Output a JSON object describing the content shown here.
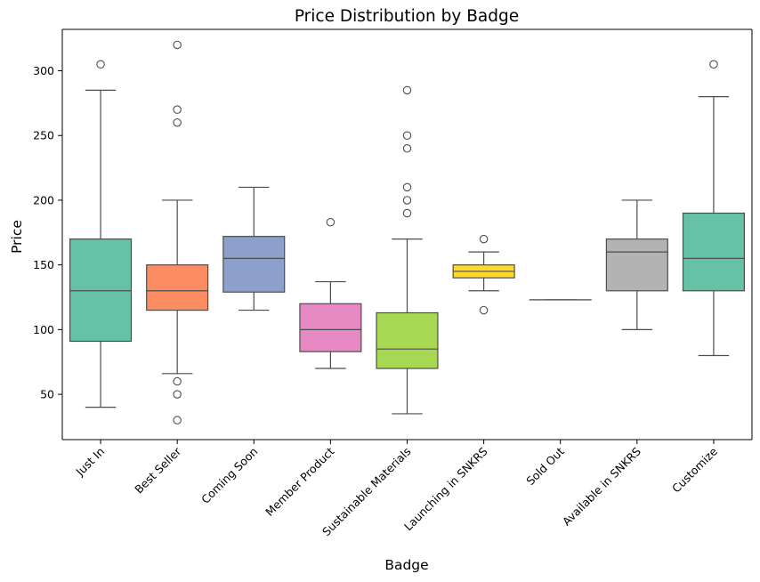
{
  "chart_data": {
    "type": "box",
    "title": "Price Distribution by Badge",
    "xlabel": "Badge",
    "ylabel": "Price",
    "ylim": [
      15,
      332
    ],
    "yticks": [
      50,
      100,
      150,
      200,
      250,
      300
    ],
    "grid": false,
    "legend": "none",
    "series": [
      {
        "category": "Just In",
        "color": "#66c2a5",
        "whislo": 40,
        "q1": 91,
        "med": 130,
        "q3": 170,
        "whishi": 285,
        "fliers": [
          305
        ]
      },
      {
        "category": "Best Seller",
        "color": "#fc8d62",
        "whislo": 66,
        "q1": 115,
        "med": 130,
        "q3": 150,
        "whishi": 200,
        "fliers": [
          320,
          270,
          260,
          60,
          50,
          30
        ]
      },
      {
        "category": "Coming Soon",
        "color": "#8da0cb",
        "whislo": 115,
        "q1": 129,
        "med": 155,
        "q3": 172,
        "whishi": 210,
        "fliers": []
      },
      {
        "category": "Member Product",
        "color": "#e78ac3",
        "whislo": 70,
        "q1": 83,
        "med": 100,
        "q3": 120,
        "whishi": 137,
        "fliers": [
          183
        ]
      },
      {
        "category": "Sustainable Materials",
        "color": "#a6d854",
        "whislo": 35,
        "q1": 70,
        "med": 85,
        "q3": 113,
        "whishi": 170,
        "fliers": [
          285,
          250,
          240,
          210,
          200,
          190
        ]
      },
      {
        "category": "Launching in SNKRS",
        "color": "#ffd92f",
        "whislo": 130,
        "q1": 140,
        "med": 145,
        "q3": 150,
        "whishi": 160,
        "fliers": [
          170,
          115
        ]
      },
      {
        "category": "Sold Out",
        "color": "#e5c494",
        "whislo": 123,
        "q1": 123,
        "med": 123,
        "q3": 123,
        "whishi": 123,
        "fliers": []
      },
      {
        "category": "Available in SNKRS",
        "color": "#b3b3b3",
        "whislo": 100,
        "q1": 130,
        "med": 160,
        "q3": 170,
        "whishi": 200,
        "fliers": []
      },
      {
        "category": "Customize",
        "color": "#66c2a5",
        "whislo": 80,
        "q1": 130,
        "med": 155,
        "q3": 190,
        "whishi": 280,
        "fliers": [
          305
        ]
      }
    ]
  }
}
